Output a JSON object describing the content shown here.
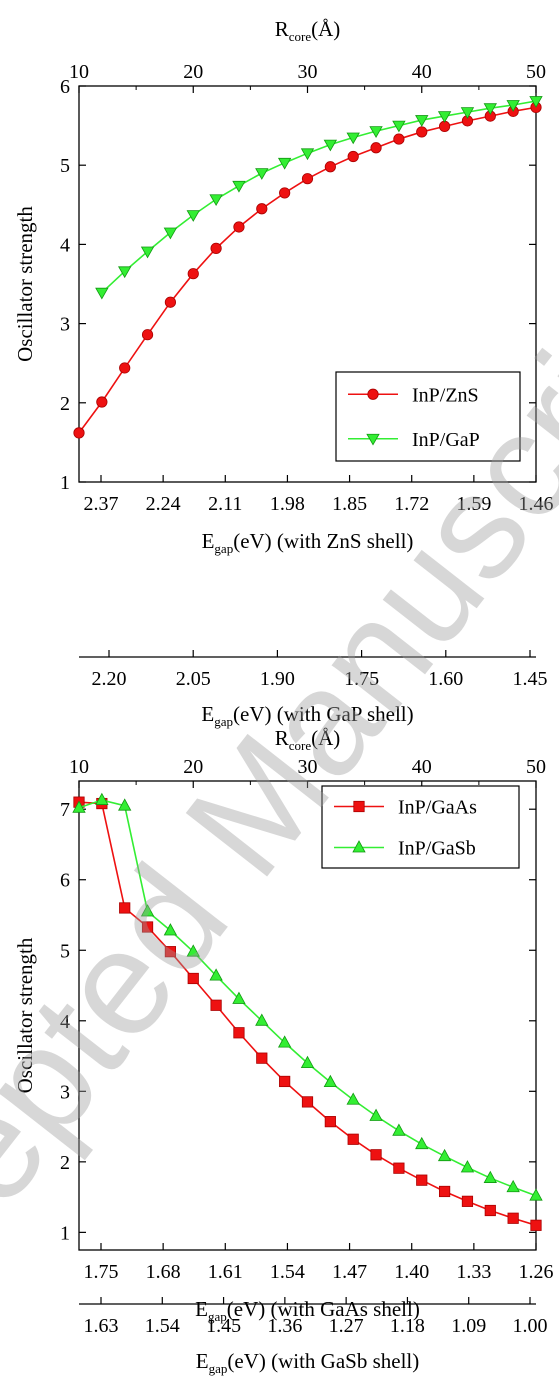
{
  "watermark": "Accepted Manuscript",
  "chart_data": [
    {
      "type": "line",
      "top_axis_label": "R",
      "top_axis_sub": "core",
      "top_axis_unit": "(Å)",
      "top_axis_range": [
        10,
        50
      ],
      "top_ticks": [
        "10",
        "20",
        "30",
        "40",
        "50"
      ],
      "ylabel": "Oscillator strength",
      "ylim": [
        1,
        6
      ],
      "yticks": [
        "1",
        "2",
        "3",
        "4",
        "5",
        "6"
      ],
      "bottom_axis_label": "E",
      "bottom_axis_sub": "gap",
      "bottom_axis_unit": "(eV) (with ZnS shell)",
      "bottom_ticks": [
        "2.37",
        "2.24",
        "2.11",
        "1.98",
        "1.85",
        "1.72",
        "1.59",
        "1.46"
      ],
      "second_axis_label": "E",
      "second_axis_sub": "gap",
      "second_axis_unit": "(eV) (with GaP shell)",
      "second_ticks": [
        "2.20",
        "2.05",
        "1.90",
        "1.75",
        "1.60",
        "1.45"
      ],
      "legend_position": "bottom-right",
      "grid": false,
      "series": [
        {
          "name": "InP/ZnS",
          "marker": "circle",
          "color": "#ee1111",
          "x": [
            10,
            12,
            14,
            16,
            18,
            20,
            22,
            24,
            26,
            28,
            30,
            32,
            34,
            36,
            38,
            40,
            42,
            44,
            46,
            48,
            50
          ],
          "y": [
            1.62,
            2.01,
            2.44,
            2.86,
            3.27,
            3.63,
            3.95,
            4.22,
            4.45,
            4.65,
            4.83,
            4.98,
            5.11,
            5.22,
            5.33,
            5.42,
            5.49,
            5.56,
            5.62,
            5.68,
            5.73
          ]
        },
        {
          "name": "InP/GaP",
          "marker": "triangle-down",
          "color": "#33ee33",
          "x": [
            12,
            14,
            16,
            18,
            20,
            22,
            24,
            26,
            28,
            30,
            32,
            34,
            36,
            38,
            40,
            42,
            44,
            46,
            48,
            50
          ],
          "y": [
            3.39,
            3.66,
            3.91,
            4.15,
            4.37,
            4.57,
            4.74,
            4.9,
            5.03,
            5.15,
            5.26,
            5.35,
            5.43,
            5.5,
            5.57,
            5.62,
            5.67,
            5.72,
            5.76,
            5.81
          ]
        }
      ]
    },
    {
      "type": "line",
      "top_axis_label": "R",
      "top_axis_sub": "core",
      "top_axis_unit": "(Å)",
      "top_axis_range": [
        10,
        50
      ],
      "top_ticks": [
        "10",
        "20",
        "30",
        "40",
        "50"
      ],
      "ylabel": "Oscillator strength",
      "ylim": [
        0.75,
        7.4
      ],
      "yticks": [
        "1",
        "2",
        "3",
        "4",
        "5",
        "6",
        "7"
      ],
      "bottom_axis_label": "E",
      "bottom_axis_sub": "gap",
      "bottom_axis_unit": "(eV) (with GaAs shell)",
      "bottom_ticks": [
        "1.75",
        "1.68",
        "1.61",
        "1.54",
        "1.47",
        "1.40",
        "1.33",
        "1.26"
      ],
      "second_axis_label": "E",
      "second_axis_sub": "gap",
      "second_axis_unit": "(eV) (with GaSb shell)",
      "second_ticks": [
        "1.63",
        "1.54",
        "1.45",
        "1.36",
        "1.27",
        "1.18",
        "1.09",
        "1.00"
      ],
      "legend_position": "top-right",
      "grid": false,
      "series": [
        {
          "name": "InP/GaAs",
          "marker": "square",
          "color": "#ee1111",
          "x": [
            10,
            12,
            14,
            16,
            18,
            20,
            22,
            24,
            26,
            28,
            30,
            32,
            34,
            36,
            38,
            40,
            42,
            44,
            46,
            48,
            50
          ],
          "y": [
            7.1,
            7.08,
            5.6,
            5.33,
            4.98,
            4.6,
            4.22,
            3.83,
            3.47,
            3.14,
            2.85,
            2.57,
            2.32,
            2.1,
            1.91,
            1.74,
            1.58,
            1.44,
            1.31,
            1.2,
            1.1
          ]
        },
        {
          "name": "InP/GaSb",
          "marker": "triangle-up",
          "color": "#33ee33",
          "x": [
            10,
            12,
            14,
            16,
            18,
            20,
            22,
            24,
            26,
            28,
            30,
            32,
            34,
            36,
            38,
            40,
            42,
            44,
            46,
            48,
            50
          ],
          "y": [
            7.02,
            7.13,
            7.05,
            5.55,
            5.28,
            4.98,
            4.64,
            4.31,
            4.0,
            3.69,
            3.4,
            3.13,
            2.88,
            2.65,
            2.44,
            2.25,
            2.08,
            1.92,
            1.77,
            1.64,
            1.52
          ]
        }
      ]
    }
  ]
}
